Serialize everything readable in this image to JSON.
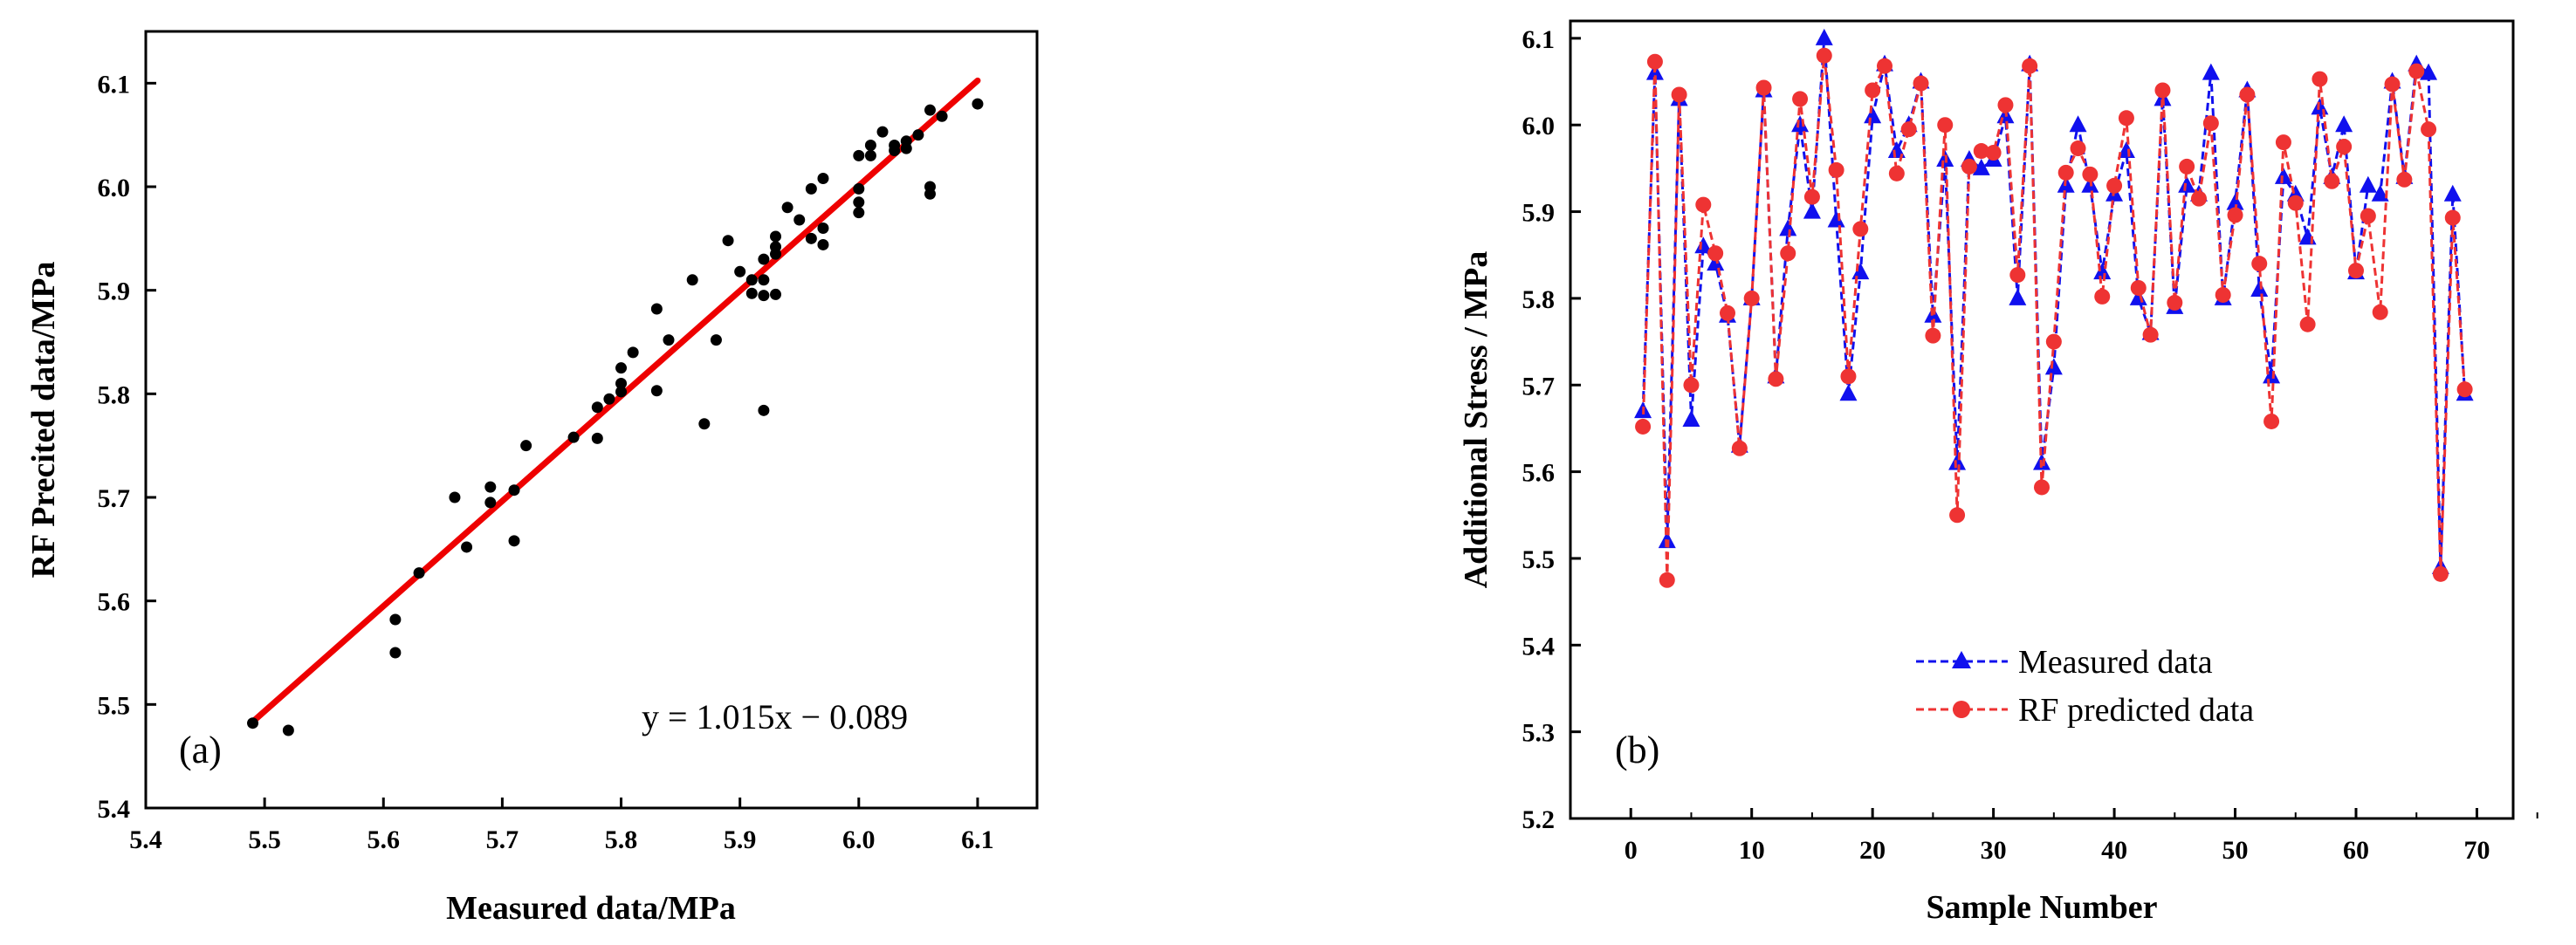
{
  "chart_data": [
    {
      "type": "scatter",
      "panel_label": "(a)",
      "xlabel": "Measured data/MPa",
      "ylabel": "RF Precited data/MPa",
      "xlim": [
        5.4,
        6.15
      ],
      "ylim": [
        5.4,
        6.15
      ],
      "xticks": [
        "5.4",
        "5.5",
        "5.6",
        "5.7",
        "5.8",
        "5.9",
        "6.0",
        "6.1"
      ],
      "yticks": [
        "5.4",
        "5.5",
        "5.6",
        "5.7",
        "5.8",
        "5.9",
        "6.0",
        "6.1"
      ],
      "fit_equation": "y = 1.015x − 0.089",
      "fit_line": {
        "slope": 1.015,
        "intercept": -0.089,
        "x_range": [
          5.49,
          6.1
        ],
        "color": "#ee0000"
      },
      "point_color": "#000000",
      "points": [
        [
          5.49,
          5.482
        ],
        [
          5.52,
          5.475
        ],
        [
          5.61,
          5.582
        ],
        [
          5.61,
          5.55
        ],
        [
          5.63,
          5.627
        ],
        [
          5.66,
          5.7
        ],
        [
          5.67,
          5.652
        ],
        [
          5.69,
          5.71
        ],
        [
          5.69,
          5.695
        ],
        [
          5.71,
          5.707
        ],
        [
          5.71,
          5.658
        ],
        [
          5.72,
          5.75
        ],
        [
          5.76,
          5.758
        ],
        [
          5.78,
          5.787
        ],
        [
          5.78,
          5.757
        ],
        [
          5.79,
          5.795
        ],
        [
          5.8,
          5.825
        ],
        [
          5.8,
          5.81
        ],
        [
          5.8,
          5.802
        ],
        [
          5.81,
          5.84
        ],
        [
          5.83,
          5.882
        ],
        [
          5.83,
          5.803
        ],
        [
          5.84,
          5.852
        ],
        [
          5.86,
          5.91
        ],
        [
          5.87,
          5.771
        ],
        [
          5.88,
          5.852
        ],
        [
          5.89,
          5.948
        ],
        [
          5.9,
          5.918
        ],
        [
          5.91,
          5.91
        ],
        [
          5.91,
          5.897
        ],
        [
          5.92,
          5.93
        ],
        [
          5.92,
          5.91
        ],
        [
          5.92,
          5.895
        ],
        [
          5.92,
          5.784
        ],
        [
          5.93,
          5.952
        ],
        [
          5.93,
          5.942
        ],
        [
          5.93,
          5.935
        ],
        [
          5.93,
          5.896
        ],
        [
          5.94,
          5.98
        ],
        [
          5.95,
          5.968
        ],
        [
          5.96,
          5.998
        ],
        [
          5.96,
          5.95
        ],
        [
          5.97,
          6.008
        ],
        [
          5.97,
          5.96
        ],
        [
          5.97,
          5.944
        ],
        [
          6.0,
          6.03
        ],
        [
          6.0,
          5.998
        ],
        [
          6.0,
          5.985
        ],
        [
          6.0,
          5.975
        ],
        [
          6.01,
          6.04
        ],
        [
          6.01,
          6.03
        ],
        [
          6.02,
          6.053
        ],
        [
          6.03,
          6.04
        ],
        [
          6.03,
          6.035
        ],
        [
          6.04,
          6.044
        ],
        [
          6.04,
          6.037
        ],
        [
          6.05,
          6.05
        ],
        [
          6.06,
          6.074
        ],
        [
          6.06,
          6.0
        ],
        [
          6.06,
          5.993
        ],
        [
          6.07,
          6.068
        ],
        [
          6.1,
          6.08
        ]
      ]
    },
    {
      "type": "line",
      "panel_label": "(b)",
      "xlabel": "Sample Number",
      "ylabel": "Additional Stress / MPa",
      "xlim": [
        -5,
        73
      ],
      "ylim": [
        5.2,
        6.12
      ],
      "xticks": [
        "0",
        "10",
        "20",
        "30",
        "40",
        "50",
        "60",
        "70"
      ],
      "yticks": [
        "5.2",
        "5.3",
        "5.4",
        "5.5",
        "5.6",
        "5.7",
        "5.8",
        "5.9",
        "6.0",
        "6.1"
      ],
      "legend_position": "bottom-center",
      "series": [
        {
          "name": "Measured data",
          "color": "#1010ee",
          "marker": "triangle",
          "values": [
            5.67,
            6.06,
            5.52,
            6.03,
            5.66,
            5.86,
            5.84,
            5.78,
            5.63,
            5.8,
            6.04,
            5.71,
            5.88,
            6.0,
            5.9,
            6.1,
            5.89,
            5.69,
            5.83,
            6.01,
            6.07,
            5.97,
            6.0,
            6.05,
            5.78,
            5.96,
            5.61,
            5.96,
            5.95,
            5.96,
            6.01,
            5.8,
            6.07,
            5.61,
            5.72,
            5.93,
            6.0,
            5.93,
            5.83,
            5.92,
            5.97,
            5.8,
            5.76,
            6.03,
            5.79,
            5.93,
            5.92,
            6.06,
            5.8,
            5.91,
            6.04,
            5.81,
            5.71,
            5.94,
            5.92,
            5.87,
            6.02,
            5.94,
            6.0,
            5.83,
            5.93,
            5.92,
            6.05,
            5.94,
            6.07,
            6.06,
            5.49,
            5.92,
            5.69
          ]
        },
        {
          "name": "RF predicted data",
          "color": "#ee3333",
          "marker": "circle",
          "values": [
            5.652,
            6.073,
            5.475,
            6.035,
            5.7,
            5.908,
            5.852,
            5.783,
            5.627,
            5.8,
            6.043,
            5.707,
            5.852,
            6.03,
            5.917,
            6.08,
            5.948,
            5.71,
            5.88,
            6.04,
            6.068,
            5.944,
            5.995,
            6.048,
            5.757,
            6.0,
            5.55,
            5.952,
            5.97,
            5.968,
            6.023,
            5.827,
            6.068,
            5.582,
            5.75,
            5.945,
            5.973,
            5.943,
            5.802,
            5.93,
            6.008,
            5.812,
            5.758,
            6.04,
            5.795,
            5.952,
            5.915,
            6.002,
            5.804,
            5.896,
            6.035,
            5.84,
            5.658,
            5.98,
            5.91,
            5.77,
            6.053,
            5.935,
            5.975,
            5.832,
            5.895,
            5.784,
            6.047,
            5.937,
            6.062,
            5.995,
            5.482,
            5.893,
            5.695
          ]
        }
      ]
    }
  ]
}
